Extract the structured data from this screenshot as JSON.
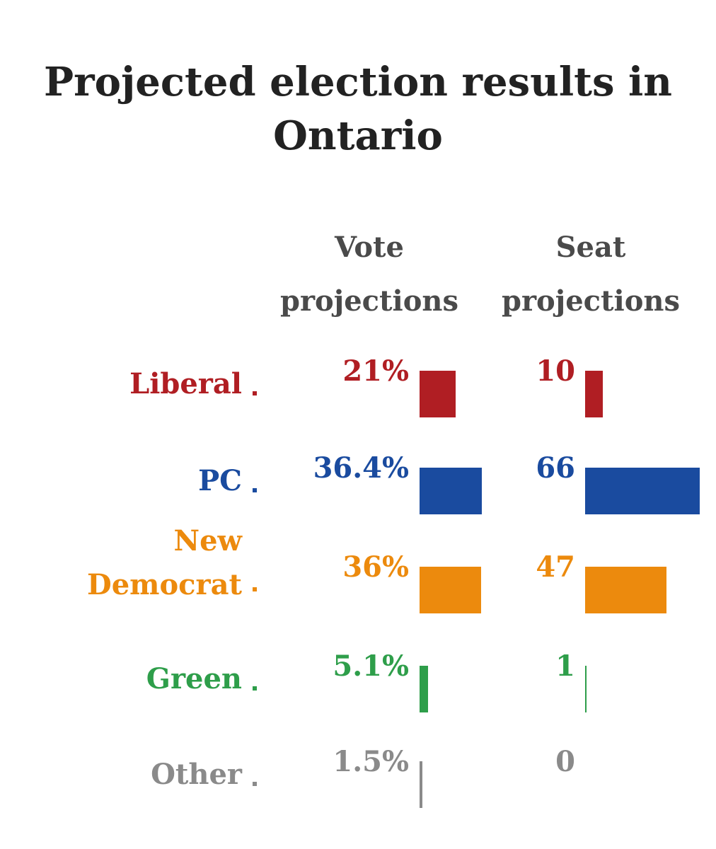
{
  "title": "Projected election results in Ontario",
  "columns": {
    "vote": "Vote projections",
    "seat": "Seat projections"
  },
  "chart_data": {
    "type": "bar",
    "title": "Projected election results in Ontario",
    "categories": [
      "Liberal",
      "PC",
      "New Democrat",
      "Green",
      "Other"
    ],
    "series": [
      {
        "name": "Vote projections",
        "values": [
          21,
          36.4,
          36,
          5.1,
          1.5
        ],
        "labels": [
          "21%",
          "36.4%",
          "36%",
          "5.1%",
          "1.5%"
        ]
      },
      {
        "name": "Seat projections",
        "values": [
          10,
          66,
          47,
          1,
          0
        ],
        "labels": [
          "10",
          "66",
          "47",
          "1",
          "0"
        ]
      }
    ],
    "colors": [
      "#b01e23",
      "#1a4b9f",
      "#ec8a0d",
      "#2e9e4a",
      "#8a8a8a"
    ],
    "vote_max": 36.4,
    "seat_max": 66,
    "grid": false,
    "legend": "none"
  }
}
